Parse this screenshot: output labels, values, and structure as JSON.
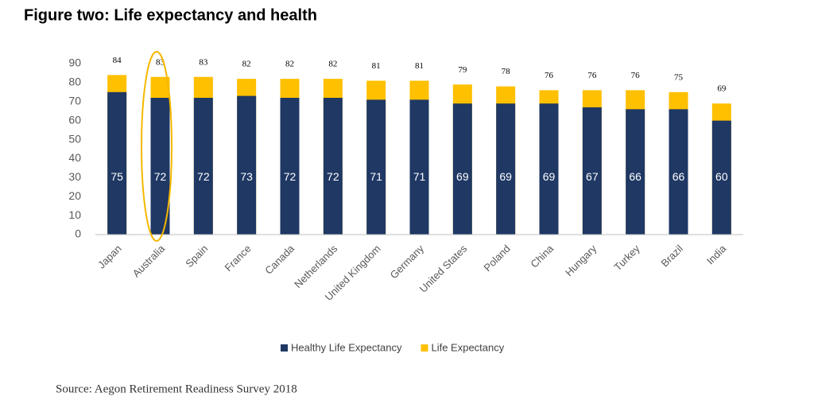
{
  "chart_data": {
    "type": "overlap_bar",
    "title": "Figure two: Life expectancy and health",
    "categories": [
      "Japan",
      "Australia",
      "Spain",
      "France",
      "Canada",
      "Netherlands",
      "United Kingdom",
      "Germany",
      "United States",
      "Poland",
      "China",
      "Hungary",
      "Turkey",
      "Brazil",
      "India"
    ],
    "series": [
      {
        "name": "Healthy Life Expectancy",
        "color": "#1f3864",
        "values": [
          75,
          72,
          72,
          73,
          72,
          72,
          71,
          71,
          69,
          69,
          69,
          67,
          66,
          66,
          60
        ]
      },
      {
        "name": "Life Expectancy",
        "color": "#ffc000",
        "values": [
          84,
          83,
          83,
          82,
          82,
          82,
          81,
          81,
          79,
          78,
          76,
          76,
          76,
          75,
          69
        ]
      }
    ],
    "ylim": [
      0,
      90
    ],
    "yticks": [
      0,
      10,
      20,
      30,
      40,
      50,
      60,
      70,
      80,
      90
    ],
    "grid": false,
    "legend": "bottom",
    "source": "Source: Aegon Retirement Readiness Survey 2018"
  }
}
